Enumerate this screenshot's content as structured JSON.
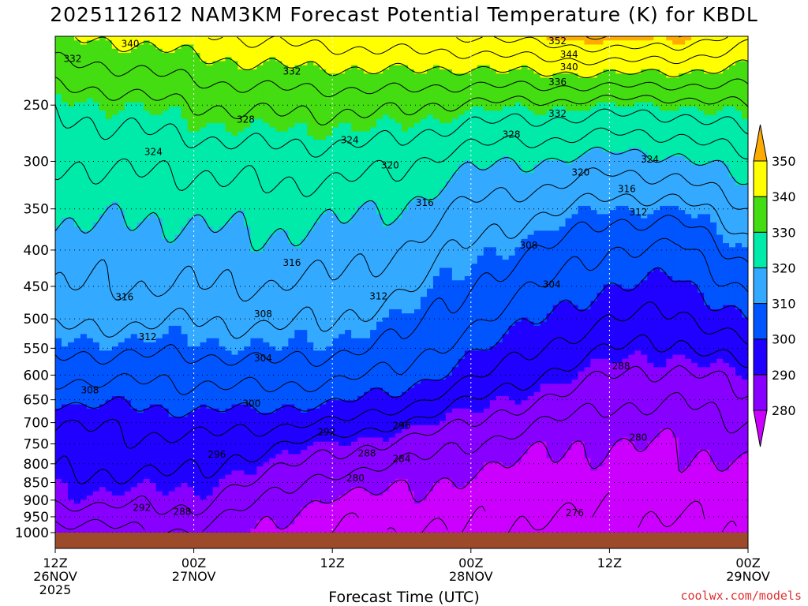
{
  "title": "2025112612 NAM3KM Forecast Potential Temperature (K) for KBDL",
  "credit": "coolwx.com/models",
  "chart_data": {
    "type": "heatmap",
    "title": "2025112612 NAM3KM Forecast Potential Temperature (K) for KBDL",
    "xlabel": "Forecast Time (UTC)",
    "ylabel": "",
    "y_scale": "log",
    "y_inverted": true,
    "y_ticks": [
      250,
      300,
      350,
      400,
      450,
      500,
      550,
      600,
      650,
      700,
      750,
      800,
      850,
      900,
      950,
      1000
    ],
    "y_range": [
      1000,
      200
    ],
    "x_ticks": [
      {
        "hour": 0,
        "l1": "12Z",
        "l2": "26NOV",
        "l3": "2025"
      },
      {
        "hour": 12,
        "l1": "00Z",
        "l2": "27NOV",
        "l3": ""
      },
      {
        "hour": 24,
        "l1": "12Z",
        "l2": "",
        "l3": ""
      },
      {
        "hour": 36,
        "l1": "00Z",
        "l2": "28NOV",
        "l3": ""
      },
      {
        "hour": 48,
        "l1": "12Z",
        "l2": "",
        "l3": ""
      },
      {
        "hour": 60,
        "l1": "00Z",
        "l2": "29NOV",
        "l3": ""
      }
    ],
    "x_range_hours": [
      0,
      60
    ],
    "grid": true,
    "colorbar": {
      "levels": [
        280,
        290,
        300,
        310,
        320,
        330,
        340,
        350
      ],
      "colors": [
        "#cc00ff",
        "#8800ff",
        "#2000ff",
        "#0055ff",
        "#33aaff",
        "#00eaaa",
        "#44dd11",
        "#ffff00",
        "#ffaa00"
      ],
      "position": "right",
      "extend": "both"
    },
    "contour_interval": 4,
    "theta_profiles": {
      "pressure_levels": [
        1000,
        950,
        900,
        850,
        800,
        750,
        700,
        650,
        600,
        550,
        500,
        450,
        400,
        350,
        300,
        250,
        200
      ],
      "times": [
        {
          "hour": 0,
          "theta": [
            282,
            285,
            289,
            291,
            293,
            294,
            296,
            301,
            305,
            309,
            313,
            316,
            318,
            321,
            324,
            329,
            340
          ]
        },
        {
          "hour": 6,
          "theta": [
            283,
            286,
            289,
            291,
            293,
            295,
            297,
            301,
            305,
            309,
            313,
            316,
            318,
            321,
            325,
            330,
            341
          ]
        },
        {
          "hour": 12,
          "theta": [
            284,
            287,
            289,
            291,
            293,
            295,
            298,
            302,
            305,
            309,
            312,
            316,
            318,
            321,
            325,
            332,
            343
          ]
        },
        {
          "hour": 18,
          "theta": [
            279,
            281,
            284,
            287,
            290,
            293,
            297,
            302,
            306,
            310,
            313,
            316,
            319,
            322,
            326,
            333,
            345
          ]
        },
        {
          "hour": 24,
          "theta": [
            276,
            277,
            279,
            282,
            286,
            290,
            296,
            301,
            305,
            309,
            312,
            315,
            318,
            321,
            326,
            333,
            346
          ]
        },
        {
          "hour": 30,
          "theta": [
            276,
            277,
            279,
            281,
            284,
            287,
            292,
            298,
            303,
            307,
            310,
            313,
            316,
            320,
            325,
            333,
            347
          ]
        },
        {
          "hour": 36,
          "theta": [
            276,
            277,
            278,
            279,
            281,
            284,
            288,
            292,
            297,
            301,
            305,
            308,
            311,
            315,
            321,
            331,
            348
          ]
        },
        {
          "hour": 42,
          "theta": [
            275,
            276,
            277,
            278,
            279,
            281,
            284,
            288,
            292,
            296,
            300,
            304,
            308,
            313,
            320,
            331,
            350
          ]
        },
        {
          "hour": 48,
          "theta": [
            276,
            276,
            277,
            278,
            279,
            280,
            282,
            285,
            288,
            292,
            296,
            300,
            304,
            310,
            318,
            330,
            352
          ]
        },
        {
          "hour": 54,
          "theta": [
            275,
            276,
            277,
            278,
            279,
            280,
            282,
            284,
            287,
            291,
            295,
            299,
            303,
            310,
            319,
            330,
            351
          ]
        },
        {
          "hour": 60,
          "theta": [
            276,
            277,
            278,
            279,
            280,
            282,
            284,
            287,
            290,
            295,
            300,
            305,
            310,
            316,
            323,
            332,
            346
          ]
        }
      ]
    },
    "annotations": [
      {
        "text": "340",
        "hour": 6.5,
        "p": 205
      },
      {
        "text": "352",
        "hour": 43.5,
        "p": 203
      },
      {
        "text": "344",
        "hour": 44.5,
        "p": 212
      },
      {
        "text": "340",
        "hour": 44.5,
        "p": 221
      },
      {
        "text": "336",
        "hour": 43.5,
        "p": 232
      },
      {
        "text": "332",
        "hour": 1.5,
        "p": 215
      },
      {
        "text": "332",
        "hour": 20.5,
        "p": 224
      },
      {
        "text": "332",
        "hour": 43.5,
        "p": 257
      },
      {
        "text": "328",
        "hour": 16.5,
        "p": 262
      },
      {
        "text": "328",
        "hour": 39.5,
        "p": 275
      },
      {
        "text": "324",
        "hour": 8.5,
        "p": 291
      },
      {
        "text": "324",
        "hour": 25.5,
        "p": 280
      },
      {
        "text": "324",
        "hour": 51.5,
        "p": 298
      },
      {
        "text": "320",
        "hour": 29,
        "p": 304
      },
      {
        "text": "320",
        "hour": 45.5,
        "p": 311
      },
      {
        "text": "316",
        "hour": 32,
        "p": 343
      },
      {
        "text": "316",
        "hour": 49.5,
        "p": 328
      },
      {
        "text": "316",
        "hour": 20.5,
        "p": 417
      },
      {
        "text": "316",
        "hour": 6,
        "p": 466
      },
      {
        "text": "312",
        "hour": 28,
        "p": 465
      },
      {
        "text": "312",
        "hour": 50.5,
        "p": 354
      },
      {
        "text": "312",
        "hour": 8,
        "p": 530
      },
      {
        "text": "308",
        "hour": 41,
        "p": 394
      },
      {
        "text": "308",
        "hour": 18,
        "p": 492
      },
      {
        "text": "308",
        "hour": 3,
        "p": 630
      },
      {
        "text": "304",
        "hour": 43,
        "p": 447
      },
      {
        "text": "304",
        "hour": 18,
        "p": 568
      },
      {
        "text": "300",
        "hour": 17,
        "p": 658
      },
      {
        "text": "296",
        "hour": 30,
        "p": 707
      },
      {
        "text": "296",
        "hour": 14,
        "p": 776
      },
      {
        "text": "292",
        "hour": 23.5,
        "p": 722
      },
      {
        "text": "292",
        "hour": 7.5,
        "p": 923
      },
      {
        "text": "288",
        "hour": 49,
        "p": 583
      },
      {
        "text": "288",
        "hour": 27,
        "p": 773
      },
      {
        "text": "288",
        "hour": 11,
        "p": 935
      },
      {
        "text": "284",
        "hour": 30,
        "p": 787
      },
      {
        "text": "280",
        "hour": 50.5,
        "p": 735
      },
      {
        "text": "280",
        "hour": 26,
        "p": 838
      },
      {
        "text": "276",
        "hour": 45,
        "p": 938
      }
    ]
  }
}
